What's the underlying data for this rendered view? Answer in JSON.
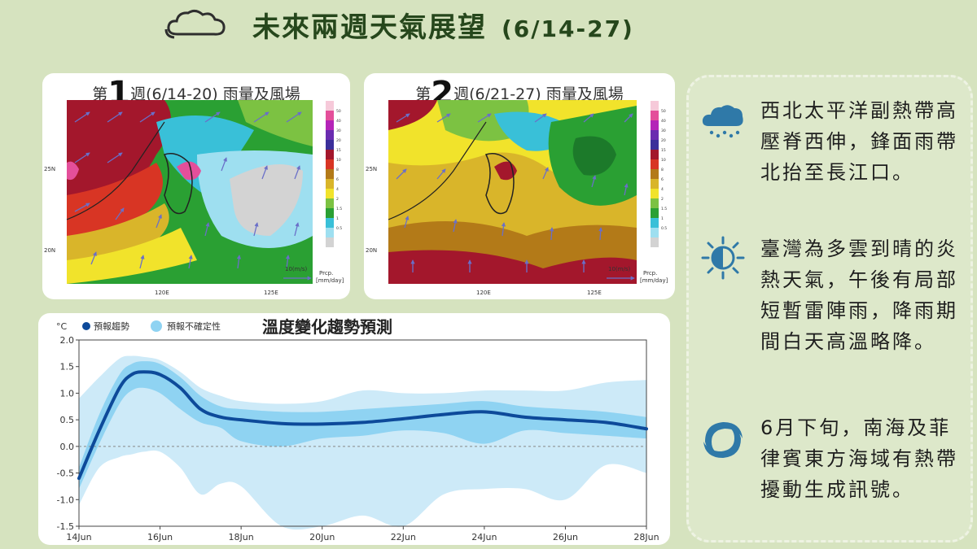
{
  "header": {
    "title": "未來兩週天氣展望",
    "date_range": "(6/14-27)",
    "icon": "cloud-icon"
  },
  "maps": [
    {
      "week_prefix": "第",
      "week_number": "1",
      "week_suffix": "週(6/14-20) 雨量及風場",
      "lat_labels": [
        "25N",
        "20N"
      ],
      "lon_labels": [
        "120E",
        "125E"
      ],
      "wind_scale": "10(m/s)",
      "legend_title": "Prcp.",
      "legend_unit": "[mm/day]"
    },
    {
      "week_prefix": "第",
      "week_number": "2",
      "week_suffix": "週(6/21-27) 雨量及風場",
      "lat_labels": [
        "25N",
        "20N"
      ],
      "lon_labels": [
        "120E",
        "125E"
      ],
      "wind_scale": "10(m/s)",
      "legend_title": "Prcp.",
      "legend_unit": "[mm/day]"
    }
  ],
  "precip_legend": {
    "levels": [
      "50",
      "40",
      "30",
      "20",
      "15",
      "10",
      "8",
      "6",
      "4",
      "2",
      "1.5",
      "1",
      "0.5"
    ],
    "colors": [
      "#f6c9d9",
      "#e44f9a",
      "#b424b8",
      "#6a2cb0",
      "#3b2f9a",
      "#a3172c",
      "#d83524",
      "#b37a18",
      "#d9b52a",
      "#f1e32b",
      "#7cc242",
      "#2aa033",
      "#39c0d8",
      "#9edff0",
      "#d3d3d3"
    ]
  },
  "chart_data": {
    "type": "area",
    "title": "溫度變化趨勢預測",
    "ylabel": "°C",
    "legend": [
      "預報趨勢",
      "預報不確定性"
    ],
    "ylim": [
      -1.5,
      2.0
    ],
    "yticks": [
      2.0,
      1.5,
      1.0,
      0.5,
      0.0,
      -0.5,
      -1.0,
      -1.5
    ],
    "ytick_labels": [
      "2.0",
      "1.5",
      "1.0",
      "0.5",
      "0.0",
      "-0.5",
      "-1.0",
      "-1.5"
    ],
    "xlim": [
      14,
      28
    ],
    "xticks": [
      14,
      16,
      18,
      20,
      22,
      24,
      26,
      28
    ],
    "xtick_labels": [
      "14Jun",
      "16Jun",
      "18Jun",
      "20Jun",
      "22Jun",
      "24Jun",
      "26Jun",
      "28Jun"
    ],
    "x": [
      14,
      14.5,
      15,
      15.3,
      15.6,
      16,
      16.5,
      17,
      17.5,
      18,
      19,
      20,
      21,
      22,
      23,
      24,
      25,
      26,
      27,
      28
    ],
    "series": [
      {
        "name": "預報趨勢",
        "values": [
          -0.6,
          0.3,
          1.1,
          1.35,
          1.4,
          1.35,
          1.1,
          0.7,
          0.55,
          0.5,
          0.43,
          0.42,
          0.45,
          0.52,
          0.6,
          0.65,
          0.55,
          0.5,
          0.45,
          0.33
        ]
      }
    ],
    "band_outer": {
      "upper": [
        0.9,
        1.3,
        1.65,
        1.7,
        1.68,
        1.62,
        1.4,
        1.1,
        0.95,
        0.85,
        0.8,
        0.85,
        1.05,
        1.0,
        1.0,
        1.05,
        1.05,
        1.05,
        1.2,
        1.25
      ],
      "lower": [
        -1.1,
        -0.4,
        -0.2,
        -0.15,
        -0.1,
        -0.1,
        -0.4,
        -0.9,
        -0.7,
        -0.75,
        -1.5,
        -1.5,
        -1.3,
        -1.5,
        -0.9,
        -0.8,
        -0.8,
        -1.0,
        -0.35,
        -0.5
      ]
    },
    "band_inner": {
      "upper": [
        -0.4,
        0.6,
        1.35,
        1.55,
        1.6,
        1.55,
        1.3,
        0.95,
        0.75,
        0.7,
        0.65,
        0.65,
        0.7,
        0.75,
        0.8,
        0.85,
        0.75,
        0.7,
        0.65,
        0.55
      ],
      "lower": [
        -0.8,
        0.05,
        0.8,
        1.05,
        1.1,
        1.0,
        0.7,
        0.45,
        0.35,
        0.1,
        0.0,
        0.15,
        0.2,
        0.3,
        0.25,
        0.05,
        0.3,
        0.25,
        0.2,
        0.15
      ]
    },
    "reference_line": 0.0,
    "colors": {
      "trend": "#0d4a9a",
      "inner": "#8fd3f2",
      "outer": "#cdeaf8"
    }
  },
  "info": [
    {
      "icon": "rain-cloud-icon",
      "text": "西北太平洋副熱帶高壓脊西伸，鋒面雨帶北抬至長江口。"
    },
    {
      "icon": "sun-cloud-icon",
      "text": "臺灣為多雲到晴的炎熱天氣，午後有局部短暫雷陣雨，降雨期間白天高溫略降。"
    },
    {
      "icon": "typhoon-icon",
      "text": "6月下旬，南海及菲律賓東方海域有熱帶擾動生成訊號。"
    }
  ]
}
